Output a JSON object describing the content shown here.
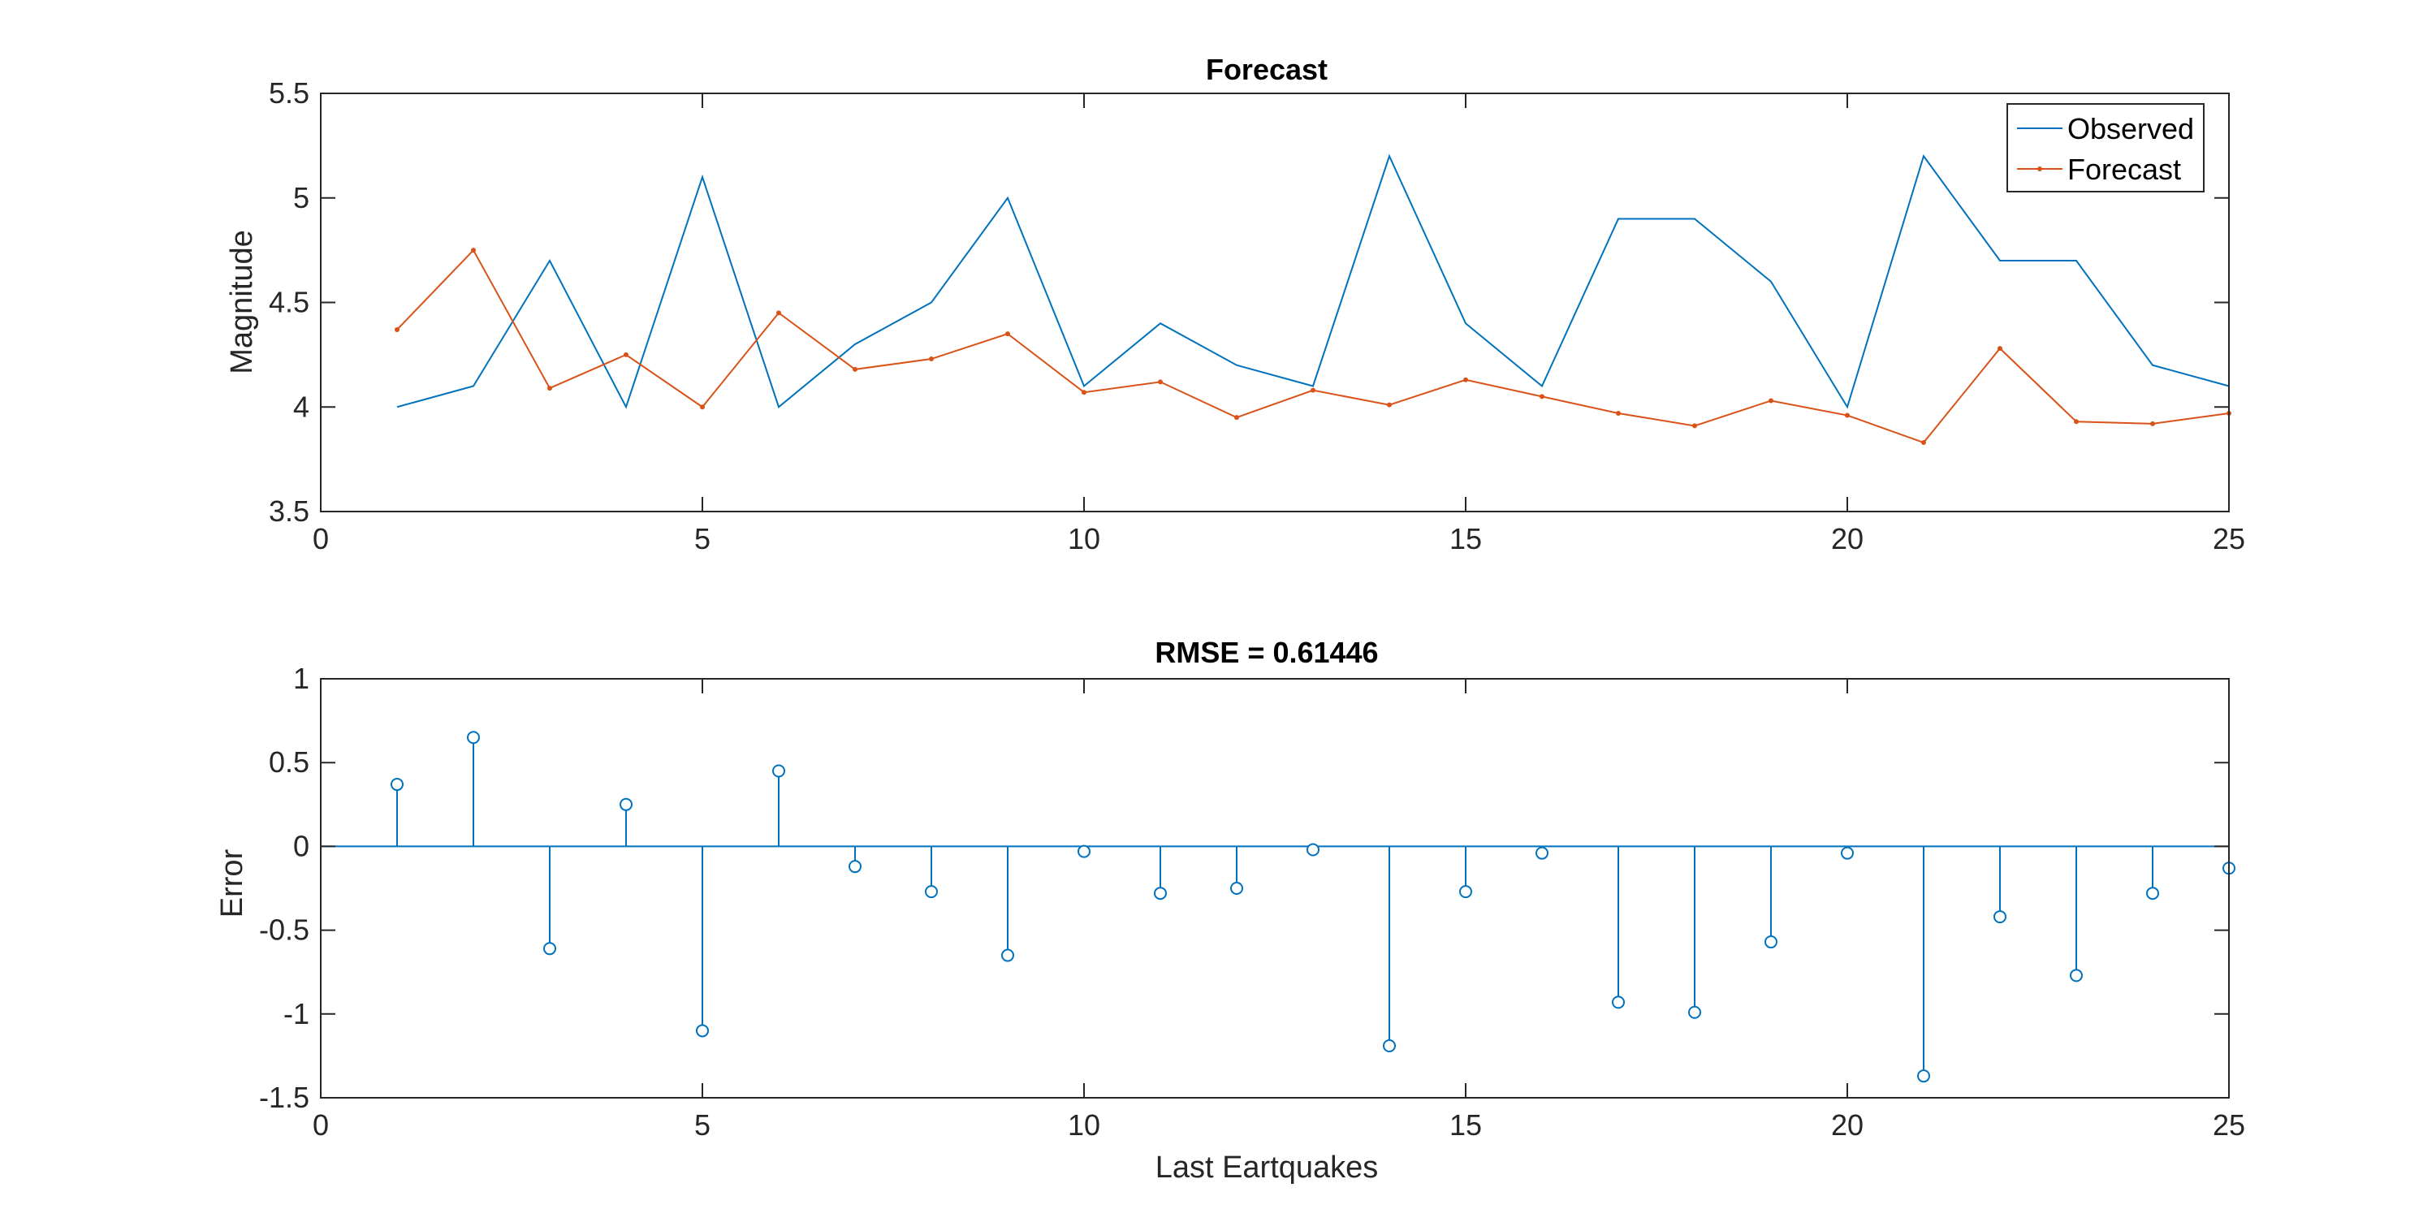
{
  "colors": {
    "observed": "#0072BD",
    "forecast": "#D95319",
    "stem": "#0072BD",
    "axes": "#262626",
    "background": "#ffffff"
  },
  "chart_data": [
    {
      "type": "line",
      "title": "Forecast",
      "xlabel": "",
      "ylabel": "Magnitude",
      "xlim": [
        0,
        25
      ],
      "ylim": [
        3.5,
        5.5
      ],
      "xticks": [
        "0",
        "5",
        "10",
        "15",
        "20",
        "25"
      ],
      "yticks": [
        "3.5",
        "4",
        "4.5",
        "5",
        "5.5"
      ],
      "legend_position": "top-right",
      "x": [
        1,
        2,
        3,
        4,
        5,
        6,
        7,
        8,
        9,
        10,
        11,
        12,
        13,
        14,
        15,
        16,
        17,
        18,
        19,
        20,
        21,
        22,
        23,
        24,
        25
      ],
      "series": [
        {
          "name": "Observed",
          "marker": "none",
          "values": [
            4.0,
            4.1,
            4.7,
            4.0,
            5.1,
            4.0,
            4.3,
            4.5,
            5.0,
            4.1,
            4.4,
            4.2,
            4.1,
            5.2,
            4.4,
            4.1,
            4.9,
            4.9,
            4.6,
            4.0,
            5.2,
            4.7,
            4.7,
            4.2,
            4.1
          ]
        },
        {
          "name": "Forecast",
          "marker": "dot",
          "values": [
            4.37,
            4.75,
            4.09,
            4.25,
            4.0,
            4.45,
            4.18,
            4.23,
            4.35,
            4.07,
            4.12,
            3.95,
            4.08,
            4.01,
            4.13,
            4.05,
            3.97,
            3.91,
            4.03,
            3.96,
            3.83,
            4.28,
            3.93,
            3.92,
            3.97
          ]
        }
      ]
    },
    {
      "type": "stem",
      "title": "RMSE = 0.61446",
      "xlabel": "Last Eartquakes",
      "ylabel": "Error",
      "xlim": [
        0,
        25
      ],
      "ylim": [
        -1.5,
        1
      ],
      "xticks": [
        "0",
        "5",
        "10",
        "15",
        "20",
        "25"
      ],
      "yticks": [
        "-1.5",
        "-1",
        "-0.5",
        "0",
        "0.5",
        "1"
      ],
      "x": [
        1,
        2,
        3,
        4,
        5,
        6,
        7,
        8,
        9,
        10,
        11,
        12,
        13,
        14,
        15,
        16,
        17,
        18,
        19,
        20,
        21,
        22,
        23,
        24,
        25
      ],
      "values": [
        0.37,
        0.65,
        -0.61,
        0.25,
        -1.1,
        0.45,
        -0.12,
        -0.27,
        -0.65,
        -0.03,
        -0.28,
        -0.25,
        -0.02,
        -1.19,
        -0.27,
        -0.04,
        -0.93,
        -0.99,
        -0.57,
        -0.04,
        -1.37,
        -0.42,
        -0.77,
        -0.28,
        -0.13
      ]
    }
  ]
}
